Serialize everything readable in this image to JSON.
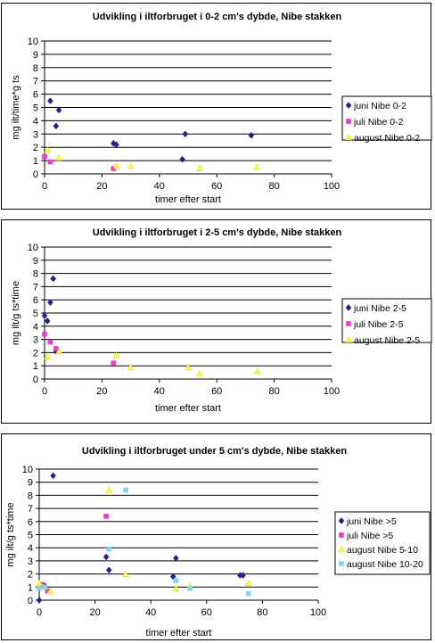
{
  "chart_data": [
    {
      "type": "scatter",
      "title": "Udvikling i iltforbruget i 0-2 cm's dybde, Nibe stakken",
      "xlabel": "timer efter start",
      "ylabel": "mg ilt/time*g ts",
      "xlim": [
        0,
        100
      ],
      "ylim": [
        0,
        10
      ],
      "xticks": [
        "0",
        "20",
        "40",
        "60",
        "80",
        "100"
      ],
      "yticks": [
        "0",
        "1",
        "2",
        "3",
        "4",
        "5",
        "6",
        "7",
        "8",
        "9",
        "10"
      ],
      "grid": "horizontal",
      "legend_position": "right",
      "series": [
        {
          "name": "juni Nibe 0-2",
          "color": "#1f1f8f",
          "marker": "diamond",
          "points": [
            [
              0,
              1.3
            ],
            [
              2,
              5.5
            ],
            [
              4,
              3.6
            ],
            [
              5,
              4.8
            ],
            [
              24,
              2.3
            ],
            [
              25,
              2.2
            ],
            [
              48,
              1.1
            ],
            [
              49,
              3.0
            ],
            [
              72,
              2.9
            ]
          ]
        },
        {
          "name": "juli Nibe 0-2",
          "color": "#ff33cc",
          "marker": "square",
          "points": [
            [
              0,
              1.3
            ],
            [
              2,
              0.9
            ],
            [
              24,
              0.4
            ]
          ]
        },
        {
          "name": "august Nibe 0-2",
          "color": "#ffff33",
          "marker": "triangle",
          "points": [
            [
              1,
              1.8
            ],
            [
              5,
              1.2
            ],
            [
              25,
              0.6
            ],
            [
              30,
              0.6
            ],
            [
              54,
              0.4
            ],
            [
              74,
              0.5
            ]
          ]
        }
      ]
    },
    {
      "type": "scatter",
      "title": "Udvikling i iltforbruget i 2-5 cm's dybde, Nibe stakken",
      "xlabel": "timer efter start",
      "ylabel": "mg ilt/g ts*time",
      "xlim": [
        0,
        100
      ],
      "ylim": [
        0,
        10
      ],
      "xticks": [
        "0",
        "20",
        "40",
        "60",
        "80",
        "100"
      ],
      "yticks": [
        "0",
        "1",
        "2",
        "3",
        "4",
        "5",
        "6",
        "7",
        "8",
        "9",
        "10"
      ],
      "grid": "horizontal",
      "legend_position": "right",
      "series": [
        {
          "name": "juni Nibe 2-5",
          "color": "#1f1f8f",
          "marker": "diamond",
          "points": [
            [
              0,
              4.8
            ],
            [
              1,
              4.4
            ],
            [
              2,
              5.8
            ],
            [
              3,
              7.6
            ],
            [
              4,
              2.1
            ]
          ]
        },
        {
          "name": "juli Nibe 2-5",
          "color": "#ff33cc",
          "marker": "square",
          "points": [
            [
              0,
              3.4
            ],
            [
              2,
              2.8
            ],
            [
              4,
              2.3
            ],
            [
              24,
              1.2
            ]
          ]
        },
        {
          "name": "august Nibe 2-5",
          "color": "#ffff33",
          "marker": "triangle",
          "points": [
            [
              1,
              1.7
            ],
            [
              5,
              2.1
            ],
            [
              25,
              1.8
            ],
            [
              30,
              0.9
            ],
            [
              50,
              0.9
            ],
            [
              54,
              0.4
            ],
            [
              74,
              0.6
            ]
          ]
        }
      ]
    },
    {
      "type": "scatter",
      "title": "Udvikling i iltforbruget under 5 cm's dybde, Nibe stakken",
      "xlabel": "timer efter start",
      "ylabel": "mg ilt/g ts*time",
      "xlim": [
        0,
        100
      ],
      "ylim": [
        0,
        10
      ],
      "xticks": [
        "0",
        "20",
        "40",
        "60",
        "80",
        "100"
      ],
      "yticks": [
        "0",
        "1",
        "2",
        "3",
        "4",
        "5",
        "6",
        "7",
        "8",
        "9",
        "10"
      ],
      "grid": "horizontal",
      "legend_position": "right",
      "series": [
        {
          "name": "juni Nibe >5",
          "color": "#1f1f8f",
          "marker": "diamond",
          "points": [
            [
              0,
              0
            ],
            [
              2,
              1.1
            ],
            [
              5,
              9.5
            ],
            [
              24,
              3.3
            ],
            [
              25,
              2.3
            ],
            [
              48,
              1.8
            ],
            [
              49,
              3.2
            ],
            [
              72,
              1.9
            ],
            [
              73,
              1.9
            ]
          ]
        },
        {
          "name": "juli Nibe >5",
          "color": "#ff33cc",
          "marker": "square",
          "points": [
            [
              1,
              1.2
            ],
            [
              3,
              0.7
            ],
            [
              24,
              6.4
            ]
          ]
        },
        {
          "name": "august Nibe 5-10",
          "color": "#ffff33",
          "marker": "triangle",
          "points": [
            [
              0,
              1.3
            ],
            [
              4,
              0.7
            ],
            [
              25,
              8.4
            ],
            [
              31,
              2.0
            ],
            [
              49,
              0.9
            ],
            [
              54,
              1.1
            ],
            [
              75,
              1.3
            ]
          ]
        },
        {
          "name": "august Nibe 10-20",
          "color": "#7fd6f0",
          "marker": "square",
          "points": [
            [
              0,
              0.9
            ],
            [
              2,
              1.0
            ],
            [
              25,
              3.9
            ],
            [
              31,
              8.4
            ],
            [
              49,
              1.5
            ],
            [
              54,
              0.9
            ],
            [
              75,
              0.5
            ]
          ]
        }
      ]
    }
  ]
}
